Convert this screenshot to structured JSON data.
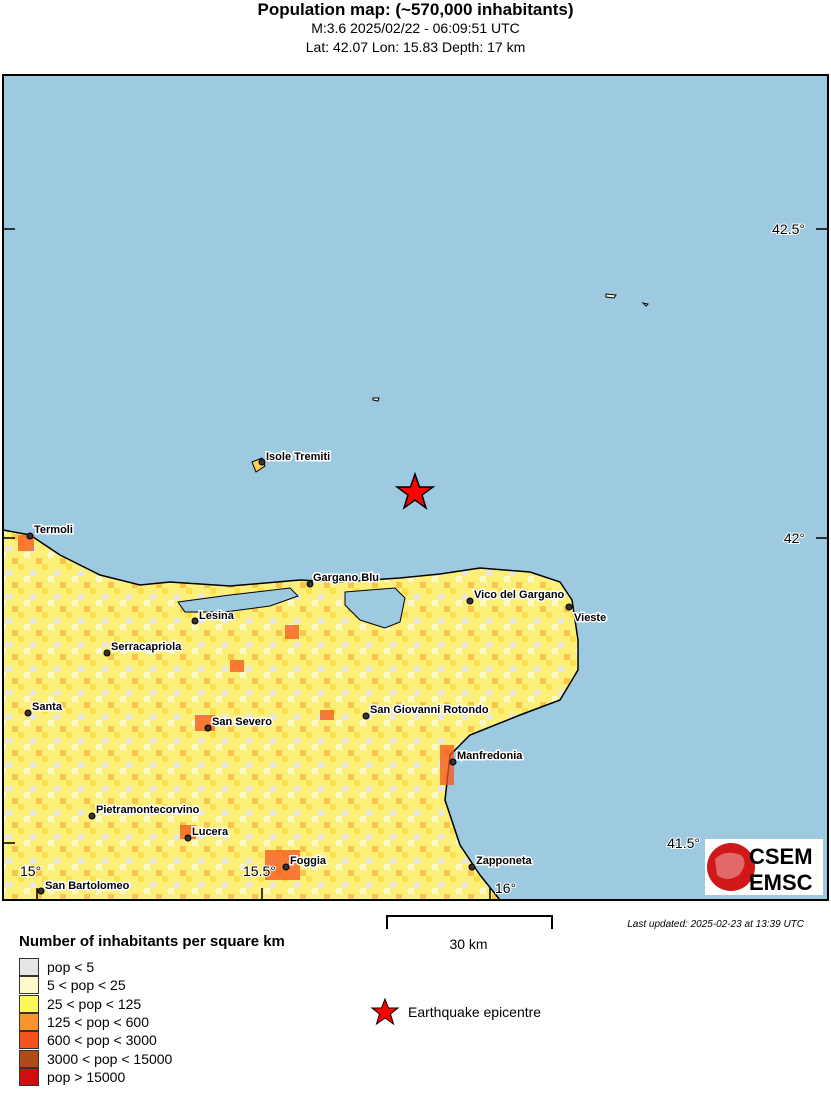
{
  "header": {
    "title": "Population map: (~570,000 inhabitants)",
    "subtitle": "M:3.6 2025/02/22 - 06:09:51 UTC",
    "location": "Lat: 42.07 Lon: 15.83 Depth: 17 km"
  },
  "map": {
    "sea_color": "#9ecae1",
    "ticks": {
      "lat": [
        "42.5°",
        "42°",
        "41.5°"
      ],
      "lon": [
        "15°",
        "15.5°",
        "16°"
      ]
    },
    "cities": [
      "Isole Tremiti",
      "Termoli",
      "Gargano Blu",
      "Vico del Gargano",
      "Vieste",
      "Lesina",
      "Serracapriola",
      "Santa",
      "San Severo",
      "San Giovanni Rotondo",
      "Manfredonia",
      "Pietramontecorvino",
      "Lucera",
      "Foggia",
      "Zapponeta",
      "San Bartolomeo"
    ],
    "epicentre_color": "#ff0000",
    "logo": {
      "top": "CSEM",
      "bottom": "EMSC"
    }
  },
  "scale_bar": {
    "label": "30 km"
  },
  "last_updated": "Last updated: 2025-02-23 at 13:39 UTC",
  "legend": {
    "title": "Number of inhabitants per square km",
    "items": [
      {
        "label": "pop < 5",
        "color": "#e5e6e6"
      },
      {
        "label": "5 < pop < 25",
        "color": "#fdf9cc"
      },
      {
        "label": "25 < pop < 125",
        "color": "#fdf75a"
      },
      {
        "label": "125 < pop < 600",
        "color": "#f9952f"
      },
      {
        "label": "600 < pop < 3000",
        "color": "#f7531c"
      },
      {
        "label": "3000 < pop < 15000",
        "color": "#b04a17"
      },
      {
        "label": "pop > 15000",
        "color": "#d10d0d"
      }
    ],
    "epicentre_label": "Earthquake epicentre"
  }
}
